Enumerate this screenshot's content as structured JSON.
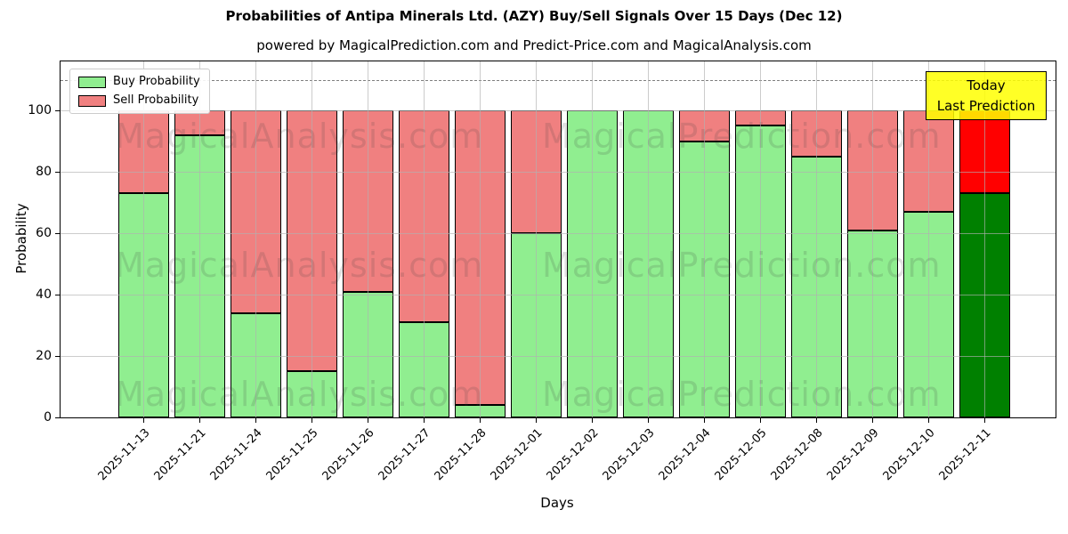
{
  "title": "Probabilities of Antipa Minerals Ltd. (AZY) Buy/Sell Signals Over 15 Days (Dec 12)",
  "subtitle": "powered by MagicalPrediction.com and Predict-Price.com and MagicalAnalysis.com",
  "axis": {
    "xlabel": "Days",
    "ylabel": "Probability",
    "yticks": [
      0,
      20,
      40,
      60,
      80,
      100
    ],
    "ylim": [
      0,
      116
    ],
    "grid": true,
    "dashed_line_y": 110
  },
  "legend": {
    "position": "upper-left",
    "entries": [
      {
        "label": "Buy Probability",
        "color": "#90ee90"
      },
      {
        "label": "Sell Probability",
        "color": "#f08080"
      }
    ]
  },
  "annotation": {
    "lines": [
      "Today",
      "Last Prediction"
    ],
    "bg_color": "#ffff00"
  },
  "watermarks": [
    "MagicalAnalysis.com",
    "MagicalPrediction.com"
  ],
  "colors": {
    "buy": "#90ee90",
    "sell": "#f08080",
    "today_buy": "#008000",
    "today_sell": "#ff0000",
    "bar_edge": "#000000",
    "grid": "#b0b0b0",
    "dashed_line": "#7f7f7f",
    "annotation_bg": "#ffff00"
  },
  "chart_data": {
    "type": "bar",
    "stacked": true,
    "title": "Probabilities of Antipa Minerals Ltd. (AZY) Buy/Sell Signals Over 15 Days (Dec 12)",
    "xlabel": "Days",
    "ylabel": "Probability",
    "ylim": [
      0,
      116
    ],
    "legend_position": "upper-left",
    "categories": [
      "2025-11-13",
      "2025-11-21",
      "2025-11-24",
      "2025-11-25",
      "2025-11-26",
      "2025-11-27",
      "2025-11-28",
      "2025-12-01",
      "2025-12-02",
      "2025-12-03",
      "2025-12-04",
      "2025-12-05",
      "2025-12-08",
      "2025-12-09",
      "2025-12-10",
      "2025-12-11"
    ],
    "series": [
      {
        "name": "Buy Probability",
        "values": [
          73,
          92,
          34,
          15,
          41,
          31,
          4,
          60,
          100,
          100,
          90,
          95,
          85,
          61,
          67,
          73
        ]
      },
      {
        "name": "Sell Probability",
        "values": [
          27,
          8,
          66,
          85,
          59,
          69,
          96,
          40,
          0,
          0,
          10,
          5,
          15,
          39,
          33,
          27
        ]
      }
    ],
    "today_index": 15
  }
}
